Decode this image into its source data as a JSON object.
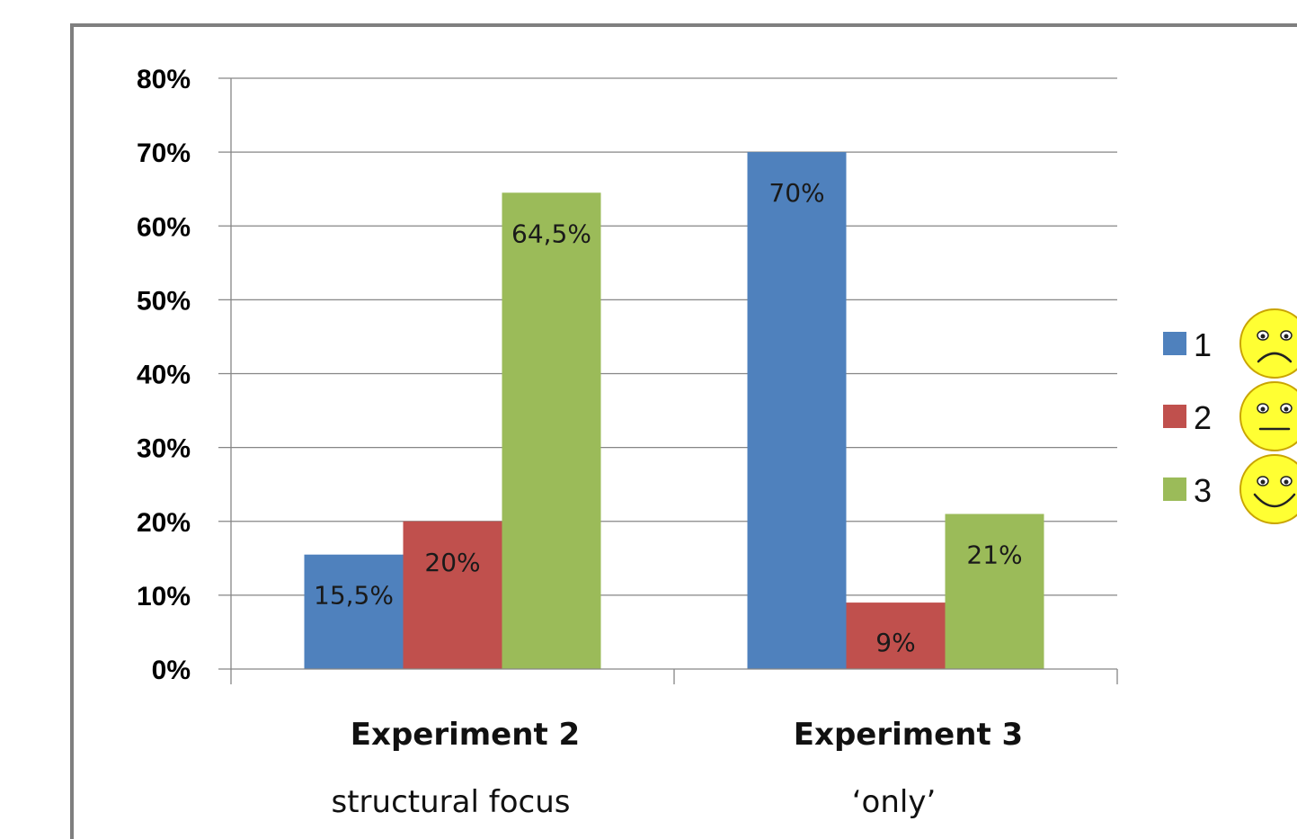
{
  "chart_data": {
    "type": "bar",
    "categories": [
      {
        "name": "Experiment 2",
        "subtitle": "structural focus"
      },
      {
        "name": "Experiment 3",
        "subtitle": "‘only’"
      }
    ],
    "series": [
      {
        "name": "1",
        "color": "#4f81bd",
        "values": [
          15.5,
          70
        ],
        "labels": [
          "15,5%",
          "70%"
        ],
        "icon": "sad-face-icon"
      },
      {
        "name": "2",
        "color": "#c0504d",
        "values": [
          20,
          9
        ],
        "labels": [
          "20%",
          "9%"
        ],
        "icon": "neutral-face-icon"
      },
      {
        "name": "3",
        "color": "#9bbb59",
        "values": [
          64.5,
          21
        ],
        "labels": [
          "64,5%",
          "21%"
        ],
        "icon": "happy-face-icon"
      }
    ],
    "ylim": [
      0,
      80
    ],
    "y_ticks": [
      "0%",
      "10%",
      "20%",
      "30%",
      "40%",
      "50%",
      "60%",
      "70%",
      "80%"
    ],
    "grid": true,
    "legend_position": "right"
  }
}
